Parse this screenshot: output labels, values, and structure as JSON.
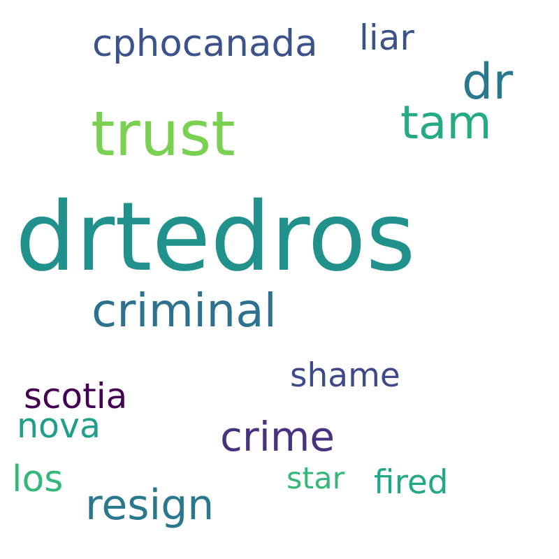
{
  "words": {
    "drtedros": {
      "text": "drtedros",
      "color": "#21918c"
    },
    "trust": {
      "text": "trust",
      "color": "#7ad151"
    },
    "tam": {
      "text": "tam",
      "color": "#25ab82"
    },
    "dr": {
      "text": "dr",
      "color": "#2a788e"
    },
    "cphocanada": {
      "text": "cphocanada",
      "color": "#3b528b"
    },
    "liar": {
      "text": "liar",
      "color": "#3b528b"
    },
    "criminal": {
      "text": "criminal",
      "color": "#2c728e"
    },
    "shame": {
      "text": "shame",
      "color": "#3e4989"
    },
    "scotia": {
      "text": "scotia",
      "color": "#440154"
    },
    "nova": {
      "text": "nova",
      "color": "#1f9e89"
    },
    "crime": {
      "text": "crime",
      "color": "#46327e"
    },
    "los": {
      "text": "los",
      "color": "#35b779"
    },
    "star": {
      "text": "star",
      "color": "#35b779"
    },
    "fired": {
      "text": "fired",
      "color": "#22a884"
    },
    "resign": {
      "text": "resign",
      "color": "#2a788e"
    }
  },
  "background": "#ffffff"
}
